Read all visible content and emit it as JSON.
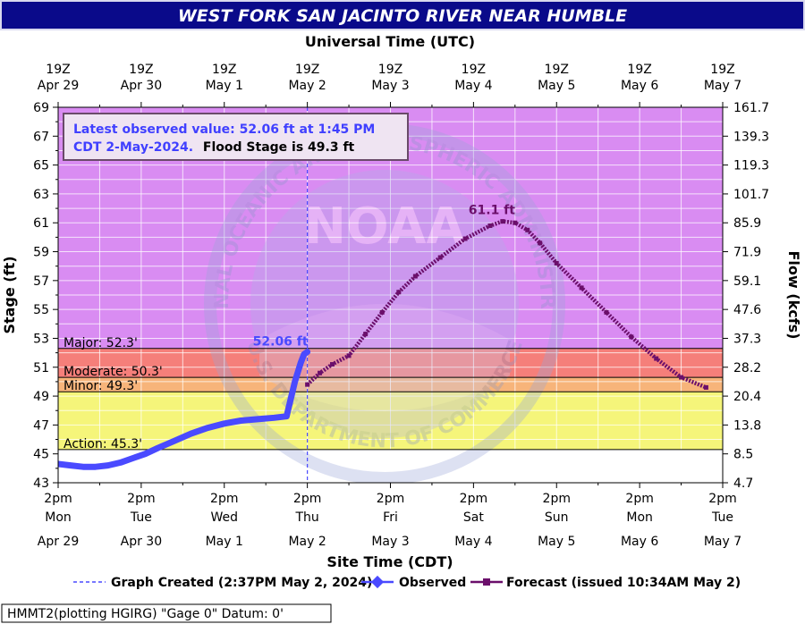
{
  "title": "WEST FORK SAN JACINTO RIVER NEAR HUMBLE",
  "footer_datum": "HMMT2(plotting HGIRG) \"Gage 0\" Datum: 0'",
  "info_box": {
    "line1": "Latest observed value: 52.06 ft at 1:45 PM",
    "line2_blue": "CDT 2-May-2024.",
    "line2_black": "Flood Stage is 49.3 ft"
  },
  "colors": {
    "title_bg": "#0a0a8a",
    "major": "#d98cf2",
    "moderate": "#f57f7a",
    "minor": "#f7b47a",
    "action": "#f5f57a",
    "normal": "#ffffff",
    "observed": "#4a4aff",
    "forecast": "#6b0f6b",
    "info_border": "#7a4a7a"
  },
  "chart_data": {
    "type": "line",
    "xlabel_top": "Universal Time (UTC)",
    "xlabel_bottom": "Site Time (CDT)",
    "ylabel": "Stage (ft)",
    "ylabel_right": "Flow (kcfs)",
    "ylim": [
      43,
      69
    ],
    "xlim": [
      0,
      8
    ],
    "yticks": [
      "43",
      "45",
      "47",
      "49",
      "51",
      "53",
      "55",
      "57",
      "59",
      "61",
      "63",
      "65",
      "67",
      "69"
    ],
    "flow_ticks": [
      {
        "stage": 43,
        "label": "4.7"
      },
      {
        "stage": 45,
        "label": "8.5"
      },
      {
        "stage": 47,
        "label": "13.8"
      },
      {
        "stage": 49,
        "label": "20.4"
      },
      {
        "stage": 51,
        "label": "28.2"
      },
      {
        "stage": 53,
        "label": "37.3"
      },
      {
        "stage": 55,
        "label": "47.6"
      },
      {
        "stage": 57,
        "label": "59.1"
      },
      {
        "stage": 59,
        "label": "71.9"
      },
      {
        "stage": 61,
        "label": "85.9"
      },
      {
        "stage": 63,
        "label": "101.7"
      },
      {
        "stage": 65,
        "label": "119.3"
      },
      {
        "stage": 67,
        "label": "139.3"
      },
      {
        "stage": 69,
        "label": "161.7"
      }
    ],
    "top_ticks": [
      {
        "t": "19Z",
        "d": "Apr 29"
      },
      {
        "t": "19Z",
        "d": "Apr 30"
      },
      {
        "t": "19Z",
        "d": "May  1"
      },
      {
        "t": "19Z",
        "d": "May  2"
      },
      {
        "t": "19Z",
        "d": "May  3"
      },
      {
        "t": "19Z",
        "d": "May  4"
      },
      {
        "t": "19Z",
        "d": "May  5"
      },
      {
        "t": "19Z",
        "d": "May  6"
      },
      {
        "t": "19Z",
        "d": "May  7"
      }
    ],
    "bottom_ticks": [
      {
        "t": "2pm",
        "day": "Mon",
        "date": "Apr 29"
      },
      {
        "t": "2pm",
        "day": "Tue",
        "date": "Apr 30"
      },
      {
        "t": "2pm",
        "day": "Wed",
        "date": "May 1"
      },
      {
        "t": "2pm",
        "day": "Thu",
        "date": "May 2"
      },
      {
        "t": "2pm",
        "day": "Fri",
        "date": "May 3"
      },
      {
        "t": "2pm",
        "day": "Sat",
        "date": "May 4"
      },
      {
        "t": "2pm",
        "day": "Sun",
        "date": "May 5"
      },
      {
        "t": "2pm",
        "day": "Mon",
        "date": "May 6"
      },
      {
        "t": "2pm",
        "day": "Tue",
        "date": "May 7"
      }
    ],
    "flood_categories": [
      {
        "name": "Major",
        "stage": 52.3,
        "label": "Major: 52.3'"
      },
      {
        "name": "Moderate",
        "stage": 50.3,
        "label": "Moderate: 50.3'"
      },
      {
        "name": "Minor",
        "stage": 49.3,
        "label": "Minor: 49.3'"
      },
      {
        "name": "Action",
        "stage": 45.3,
        "label": "Action: 45.3'"
      }
    ],
    "graph_created_day": 3,
    "observed": {
      "label": "52.06 ft",
      "x": [
        0,
        0.15,
        0.3,
        0.45,
        0.6,
        0.75,
        0.9,
        1.05,
        1.2,
        1.4,
        1.6,
        1.8,
        2.0,
        2.2,
        2.4,
        2.6,
        2.75,
        2.85,
        2.92,
        2.96,
        3.0
      ],
      "y": [
        44.3,
        44.2,
        44.1,
        44.1,
        44.2,
        44.4,
        44.7,
        45.0,
        45.4,
        45.9,
        46.4,
        46.8,
        47.1,
        47.3,
        47.4,
        47.5,
        47.6,
        50.0,
        51.3,
        51.9,
        52.06
      ]
    },
    "forecast": {
      "label": "61.1 ft",
      "x": [
        3.0,
        3.15,
        3.3,
        3.5,
        3.7,
        3.9,
        4.1,
        4.3,
        4.6,
        4.9,
        5.2,
        5.35,
        5.5,
        5.65,
        5.8,
        6.0,
        6.3,
        6.6,
        6.9,
        7.2,
        7.5,
        7.8
      ],
      "y": [
        49.8,
        50.6,
        51.2,
        51.8,
        53.3,
        54.8,
        56.2,
        57.3,
        58.6,
        59.9,
        60.8,
        61.1,
        61.0,
        60.5,
        59.6,
        58.2,
        56.5,
        54.8,
        53.1,
        51.6,
        50.3,
        49.6
      ]
    },
    "legend": {
      "created": "Graph Created (2:37PM May 2, 2024)",
      "observed": "Observed",
      "forecast": "Forecast (issued 10:34AM May 2)"
    },
    "watermark": {
      "center": "NOAA",
      "top_arc": "NATIONAL OCEANIC AND ATMOSPHERIC ADMINISTRATION",
      "bottom_arc": "U.S. DEPARTMENT OF COMMERCE"
    }
  }
}
